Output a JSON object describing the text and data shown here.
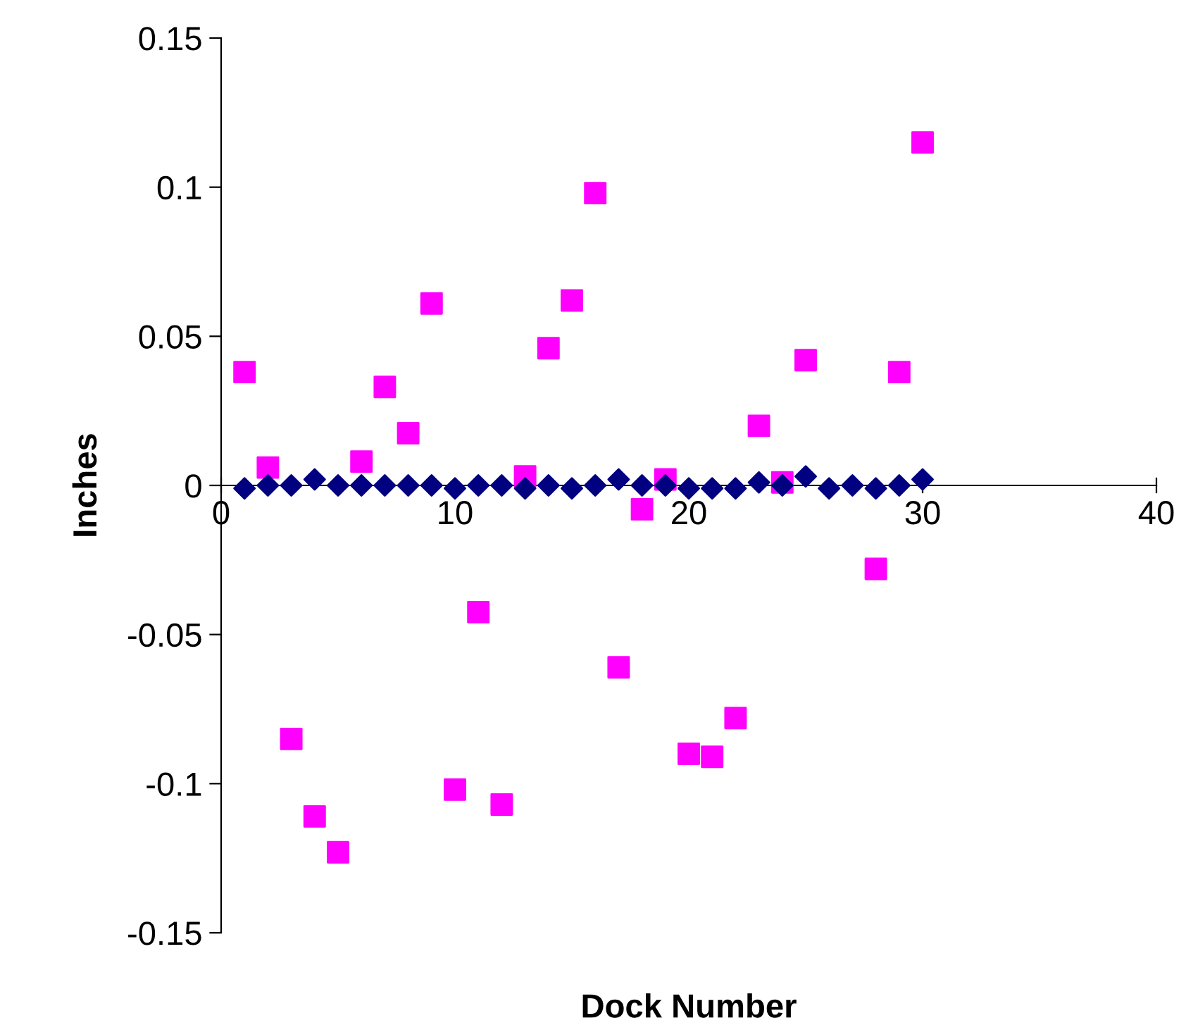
{
  "chart_data": {
    "type": "scatter",
    "xlabel": "Dock Number",
    "ylabel": "Inches",
    "xlim": [
      0,
      40
    ],
    "xticks": [
      0,
      10,
      20,
      30,
      40
    ],
    "ylim": [
      -0.15,
      0.15
    ],
    "yticks": [
      -0.15,
      -0.1,
      -0.05,
      0,
      0.05,
      0.1,
      0.15
    ],
    "grid": false,
    "legend": false,
    "x": [
      1,
      2,
      3,
      4,
      5,
      6,
      7,
      8,
      9,
      10,
      11,
      12,
      13,
      14,
      15,
      16,
      17,
      18,
      19,
      20,
      21,
      22,
      23,
      24,
      25,
      26,
      27,
      28,
      29,
      30
    ],
    "series": [
      {
        "color": "#ff00ff",
        "marker": "square",
        "values": [
          0.038,
          0.006,
          -0.085,
          -0.111,
          -0.123,
          0.008,
          0.033,
          0.0175,
          0.061,
          -0.102,
          -0.0425,
          -0.107,
          0.003,
          0.046,
          0.062,
          0.098,
          -0.061,
          -0.008,
          0.002,
          -0.09,
          -0.091,
          -0.078,
          0.02,
          0.001,
          0.042,
          null,
          null,
          -0.028,
          0.038,
          0.115
        ]
      },
      {
        "color": "#000080",
        "marker": "diamond",
        "values": [
          -0.001,
          0,
          0,
          0.002,
          0,
          0,
          0,
          0,
          0,
          -0.001,
          0,
          0,
          -0.001,
          0,
          -0.001,
          0,
          0.002,
          0,
          0,
          -0.001,
          -0.001,
          -0.001,
          0.001,
          0,
          0.003,
          -0.001,
          0,
          -0.001,
          0,
          0.002
        ]
      }
    ]
  }
}
